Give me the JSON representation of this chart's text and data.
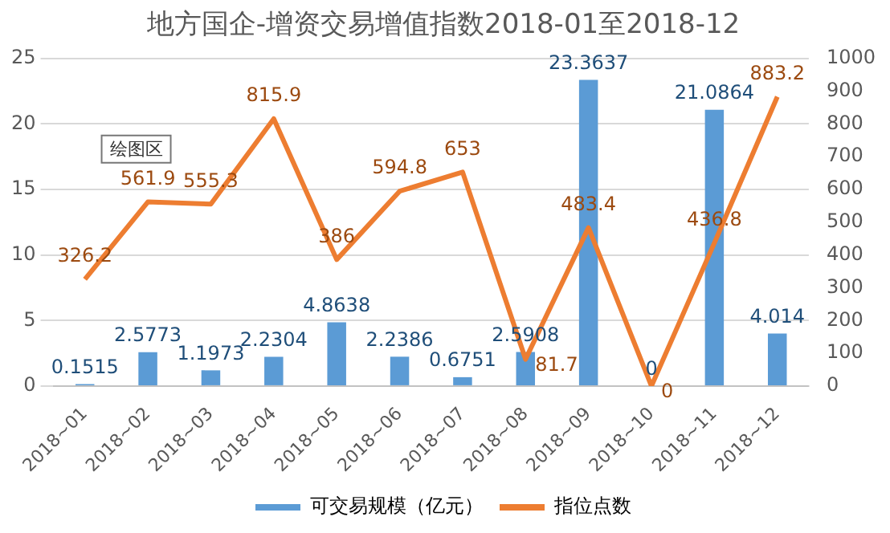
{
  "chart_data": {
    "type": "bar",
    "title": "地方国企-增资交易增值指数2018-01至2018-12",
    "categories": [
      "2018~01",
      "2018~02",
      "2018~03",
      "2018~04",
      "2018~05",
      "2018~06",
      "2018~07",
      "2018~08",
      "2018~09",
      "2018~10",
      "2018~11",
      "2018~12"
    ],
    "series": [
      {
        "name": "可交易规模（亿元）",
        "color": "#5b9bd5",
        "values": [
          0.1515,
          2.5773,
          1.1973,
          2.2304,
          4.8638,
          2.2386,
          0.6751,
          2.5908,
          23.3637,
          0,
          21.0864,
          4.014
        ]
      },
      {
        "name": "指位点数",
        "type": "line",
        "axis": "y2",
        "color": "#ed7d31",
        "values": [
          326.2,
          561.9,
          555.3,
          815.9,
          386,
          594.8,
          653,
          81.7,
          483.4,
          0,
          436.8,
          883.2
        ]
      }
    ],
    "ylim": [
      0,
      25
    ],
    "yticks": [
      0,
      5,
      10,
      15,
      20,
      25
    ],
    "y2lim": [
      0,
      1000
    ],
    "y2ticks": [
      0,
      100,
      200,
      300,
      400,
      500,
      600,
      700,
      800,
      900,
      1000
    ],
    "grid": "y",
    "legend": "bottom",
    "data_labels": true,
    "marker": "none",
    "line_style": "solid",
    "annotations": [
      "绘图区"
    ]
  }
}
